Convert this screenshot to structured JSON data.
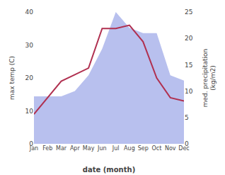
{
  "chart_data": {
    "type": "line",
    "categories": [
      "Jan",
      "Feb",
      "Mar",
      "Apr",
      "May",
      "Jun",
      "Jul",
      "Aug",
      "Sep",
      "Oct",
      "Nov",
      "Dec"
    ],
    "series": [
      {
        "type": "line",
        "color": "#b03050",
        "values": [
          9,
          14,
          19,
          21,
          23,
          35,
          35,
          36,
          31,
          20,
          14,
          13
        ]
      },
      {
        "type": "area",
        "axis": "y2",
        "color": "#b8c0ee",
        "values": [
          9,
          9,
          9,
          10,
          13,
          18,
          25,
          22,
          21,
          21,
          13,
          12
        ]
      }
    ],
    "xlabel": "date (month)",
    "ylabel": "max temp (C)",
    "y2label": "med. precipitation\n(kg/m2)",
    "ylim": [
      0,
      40
    ],
    "yticks": [
      0,
      10,
      20,
      30,
      40
    ],
    "y2lim": [
      0,
      25
    ],
    "y2ticks": [
      0,
      5,
      10,
      15,
      20,
      25
    ],
    "grid": false
  }
}
